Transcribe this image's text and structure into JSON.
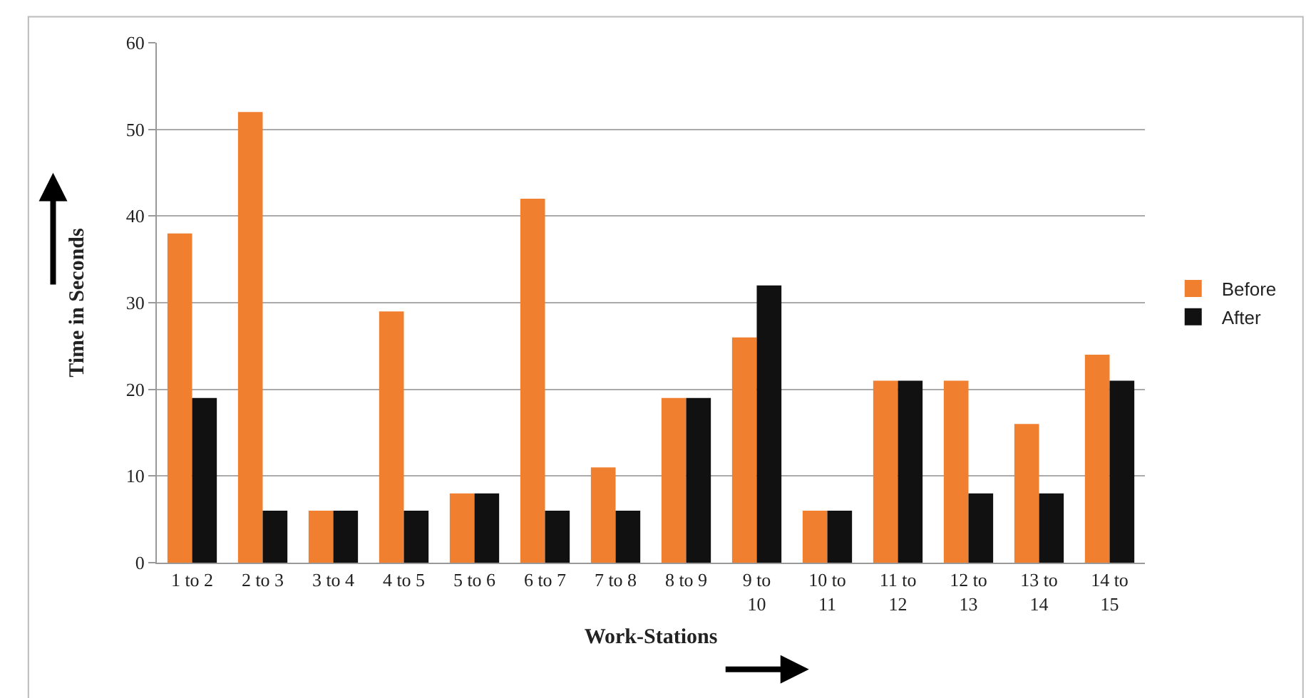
{
  "chart_data": {
    "type": "bar",
    "xlabel": "Work-Stations",
    "ylabel": "Time in Seconds",
    "categories": [
      "1 to 2",
      "2 to 3",
      "3 to 4",
      "4 to 5",
      "5 to 6",
      "6 to 7",
      "7 to 8",
      "8 to 9",
      "9 to 10",
      "10 to 11",
      "11 to 12",
      "12 to 13",
      "13 to 14",
      "14 to 15"
    ],
    "series": [
      {
        "name": "Before",
        "color": "#f07f2f",
        "values": [
          38,
          52,
          6,
          29,
          8,
          42,
          11,
          19,
          26,
          6,
          21,
          21,
          16,
          24
        ]
      },
      {
        "name": "After",
        "color": "#111111",
        "values": [
          19,
          6,
          6,
          6,
          8,
          6,
          6,
          19,
          32,
          6,
          21,
          8,
          8,
          21
        ]
      }
    ],
    "ylim": [
      0,
      60
    ],
    "yticks": [
      0,
      10,
      20,
      30,
      40,
      50,
      60
    ],
    "grid": "y",
    "legend": "right"
  }
}
